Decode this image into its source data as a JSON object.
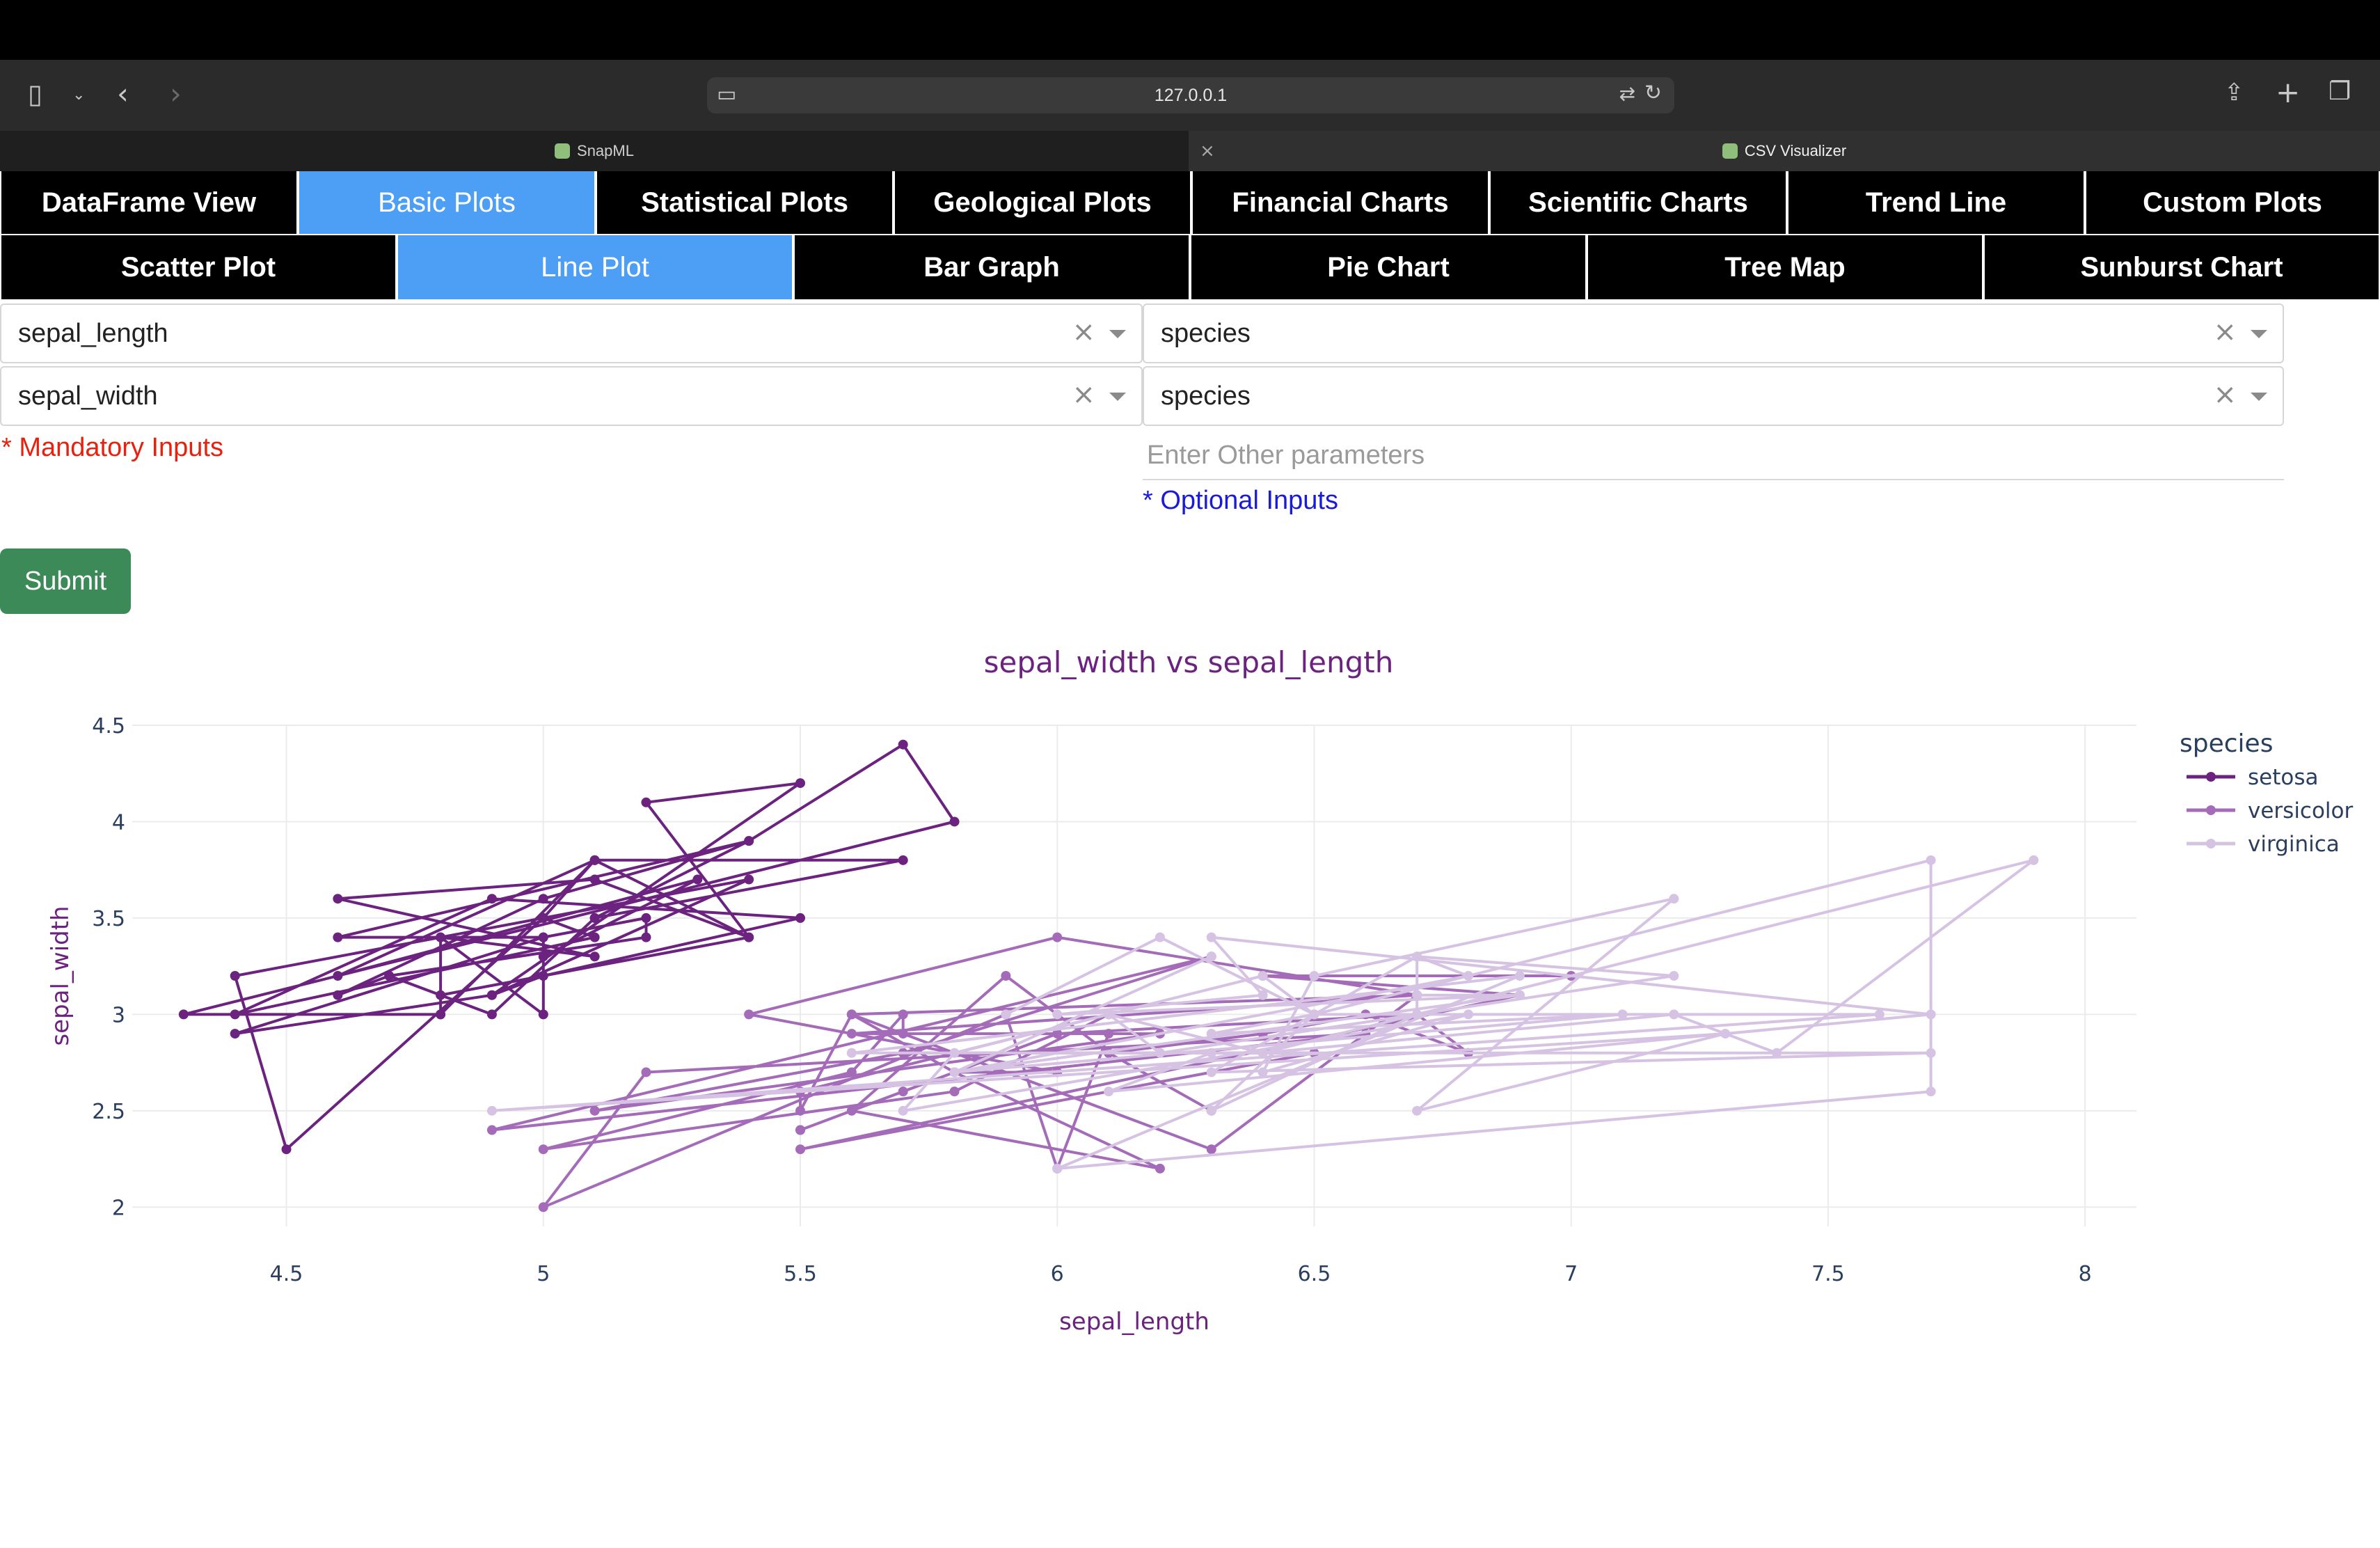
{
  "browser": {
    "url": "127.0.0.1",
    "tabs": [
      {
        "label": "SnapML",
        "active": false
      },
      {
        "label": "CSV Visualizer",
        "active": true
      }
    ]
  },
  "nav": {
    "main_tabs": [
      "DataFrame View",
      "Basic Plots",
      "Statistical Plots",
      "Geological Plots",
      "Financial Charts",
      "Scientific Charts",
      "Trend Line",
      "Custom Plots"
    ],
    "main_selected": "Basic Plots",
    "sub_tabs": [
      "Scatter Plot",
      "Line Plot",
      "Bar Graph",
      "Pie Chart",
      "Tree Map",
      "Sunburst Chart"
    ],
    "sub_selected": "Line Plot"
  },
  "form": {
    "x_value": "sepal_length",
    "y_value": "sepal_width",
    "color_value": "species",
    "line_group_value": "species",
    "other_placeholder": "Enter Other parameters",
    "mandatory_note": "* Mandatory Inputs",
    "optional_note": "* Optional Inputs",
    "submit_label": "Submit",
    "clear_glyph": "×"
  },
  "colors": {
    "accent_selected": "#4d9ff5",
    "submit_bg": "#3b8a57",
    "mandatory": "#e8200c",
    "optional": "#1a1adb",
    "setosa": "#6b237f",
    "versicolor": "#a46bb8",
    "virginica": "#d6c3e3"
  },
  "chart_data": {
    "type": "line",
    "title": "sepal_width vs sepal_length",
    "xlabel": "sepal_length",
    "ylabel": "sepal_width",
    "xlim": [
      4.2,
      8.1
    ],
    "ylim": [
      1.9,
      4.5
    ],
    "xticks": [
      4.5,
      5,
      5.5,
      6,
      6.5,
      7,
      7.5,
      8
    ],
    "yticks": [
      2,
      2.5,
      3,
      3.5,
      4,
      4.5
    ],
    "grid": true,
    "legend_title": "species",
    "legend_position": "top-right",
    "series": [
      {
        "name": "setosa",
        "color": "#6b237f",
        "points": [
          [
            5.1,
            3.5
          ],
          [
            4.9,
            3.0
          ],
          [
            4.7,
            3.2
          ],
          [
            4.6,
            3.1
          ],
          [
            5.0,
            3.6
          ],
          [
            5.4,
            3.9
          ],
          [
            4.6,
            3.4
          ],
          [
            5.0,
            3.4
          ],
          [
            4.4,
            2.9
          ],
          [
            4.9,
            3.1
          ],
          [
            5.4,
            3.7
          ],
          [
            4.8,
            3.4
          ],
          [
            4.8,
            3.0
          ],
          [
            4.3,
            3.0
          ],
          [
            5.8,
            4.0
          ],
          [
            5.7,
            4.4
          ],
          [
            5.4,
            3.9
          ],
          [
            5.1,
            3.5
          ],
          [
            5.7,
            3.8
          ],
          [
            5.1,
            3.8
          ],
          [
            5.4,
            3.4
          ],
          [
            5.1,
            3.7
          ],
          [
            4.6,
            3.6
          ],
          [
            5.1,
            3.3
          ],
          [
            4.8,
            3.4
          ],
          [
            5.0,
            3.0
          ],
          [
            5.0,
            3.4
          ],
          [
            5.2,
            3.5
          ],
          [
            5.2,
            3.4
          ],
          [
            4.7,
            3.2
          ],
          [
            4.8,
            3.1
          ],
          [
            5.4,
            3.4
          ],
          [
            5.2,
            4.1
          ],
          [
            5.5,
            4.2
          ],
          [
            4.9,
            3.1
          ],
          [
            5.0,
            3.2
          ],
          [
            5.5,
            3.5
          ],
          [
            4.9,
            3.6
          ],
          [
            4.4,
            3.0
          ],
          [
            5.1,
            3.4
          ],
          [
            5.0,
            3.5
          ],
          [
            4.5,
            2.3
          ],
          [
            4.4,
            3.2
          ],
          [
            5.0,
            3.5
          ],
          [
            5.1,
            3.8
          ],
          [
            4.8,
            3.0
          ],
          [
            5.1,
            3.8
          ],
          [
            4.6,
            3.2
          ],
          [
            5.3,
            3.7
          ],
          [
            5.0,
            3.3
          ]
        ]
      },
      {
        "name": "versicolor",
        "color": "#a46bb8",
        "points": [
          [
            7.0,
            3.2
          ],
          [
            6.4,
            3.2
          ],
          [
            6.9,
            3.1
          ],
          [
            5.5,
            2.3
          ],
          [
            6.5,
            2.8
          ],
          [
            5.7,
            2.8
          ],
          [
            6.3,
            3.3
          ],
          [
            4.9,
            2.4
          ],
          [
            6.6,
            2.9
          ],
          [
            5.2,
            2.7
          ],
          [
            5.0,
            2.0
          ],
          [
            5.9,
            3.0
          ],
          [
            6.0,
            2.2
          ],
          [
            6.1,
            2.9
          ],
          [
            5.6,
            2.9
          ],
          [
            6.7,
            3.1
          ],
          [
            5.6,
            3.0
          ],
          [
            5.8,
            2.7
          ],
          [
            6.2,
            2.2
          ],
          [
            5.6,
            2.5
          ],
          [
            5.9,
            3.2
          ],
          [
            6.1,
            2.8
          ],
          [
            6.3,
            2.5
          ],
          [
            6.1,
            2.8
          ],
          [
            6.4,
            2.9
          ],
          [
            6.6,
            3.0
          ],
          [
            6.8,
            2.8
          ],
          [
            6.7,
            3.0
          ],
          [
            6.0,
            2.9
          ],
          [
            5.7,
            2.6
          ],
          [
            5.5,
            2.4
          ],
          [
            5.5,
            2.4
          ],
          [
            5.8,
            2.7
          ],
          [
            6.0,
            2.7
          ],
          [
            5.4,
            3.0
          ],
          [
            6.0,
            3.4
          ],
          [
            6.7,
            3.1
          ],
          [
            6.3,
            2.3
          ],
          [
            5.6,
            3.0
          ],
          [
            5.5,
            2.5
          ],
          [
            5.5,
            2.6
          ],
          [
            6.1,
            3.0
          ],
          [
            5.8,
            2.6
          ],
          [
            5.0,
            2.3
          ],
          [
            5.6,
            2.7
          ],
          [
            5.7,
            3.0
          ],
          [
            5.7,
            2.9
          ],
          [
            6.2,
            2.9
          ],
          [
            5.1,
            2.5
          ],
          [
            5.7,
            2.8
          ]
        ]
      },
      {
        "name": "virginica",
        "color": "#d6c3e3",
        "points": [
          [
            6.3,
            3.3
          ],
          [
            5.8,
            2.7
          ],
          [
            7.1,
            3.0
          ],
          [
            6.3,
            2.9
          ],
          [
            6.5,
            3.0
          ],
          [
            7.6,
            3.0
          ],
          [
            4.9,
            2.5
          ],
          [
            7.3,
            2.9
          ],
          [
            6.7,
            2.5
          ],
          [
            7.2,
            3.6
          ],
          [
            6.5,
            3.2
          ],
          [
            6.4,
            2.7
          ],
          [
            6.8,
            3.0
          ],
          [
            5.7,
            2.5
          ],
          [
            5.8,
            2.8
          ],
          [
            6.4,
            3.2
          ],
          [
            6.5,
            3.0
          ],
          [
            7.7,
            3.8
          ],
          [
            7.7,
            2.6
          ],
          [
            6.0,
            2.2
          ],
          [
            6.9,
            3.2
          ],
          [
            5.6,
            2.8
          ],
          [
            7.7,
            2.8
          ],
          [
            6.3,
            2.7
          ],
          [
            6.7,
            3.3
          ],
          [
            7.2,
            3.2
          ],
          [
            6.2,
            2.8
          ],
          [
            6.1,
            3.0
          ],
          [
            6.4,
            2.8
          ],
          [
            7.2,
            3.0
          ],
          [
            7.4,
            2.8
          ],
          [
            7.9,
            3.8
          ],
          [
            6.4,
            2.8
          ],
          [
            6.3,
            2.8
          ],
          [
            6.1,
            2.6
          ],
          [
            7.7,
            3.0
          ],
          [
            6.3,
            3.4
          ],
          [
            6.4,
            3.1
          ],
          [
            6.0,
            3.0
          ],
          [
            6.9,
            3.1
          ],
          [
            6.7,
            3.1
          ],
          [
            6.9,
            3.1
          ],
          [
            5.8,
            2.7
          ],
          [
            6.8,
            3.2
          ],
          [
            6.7,
            3.3
          ],
          [
            6.7,
            3.0
          ],
          [
            6.3,
            2.5
          ],
          [
            6.5,
            3.0
          ],
          [
            6.2,
            3.4
          ],
          [
            5.9,
            3.0
          ]
        ]
      }
    ]
  }
}
